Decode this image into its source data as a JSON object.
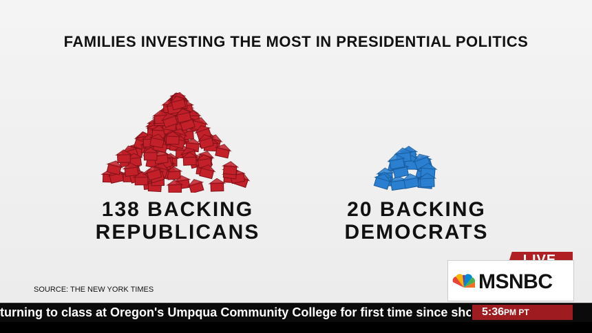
{
  "graphic": {
    "title": "FAMILIES INVESTING THE MOST IN PRESIDENTIAL POLITICS",
    "republican": {
      "line1": "138 BACKING",
      "line2": "REPUBLICANS",
      "count": 138,
      "color": "#c3202a"
    },
    "democrat": {
      "line1": "20 BACKING",
      "line2": "DEMOCRATS",
      "count": 20,
      "color": "#2a7fd0"
    },
    "source": "SOURCE: THE NEW YORK TIMES"
  },
  "broadcast": {
    "live_label": "LIVE",
    "network": "MSNBC",
    "logo_icon": "peacock-icon",
    "ticker": "turning to class at Oregon's Umpqua Community College for first time since shooti",
    "time": "5:36",
    "time_suffix": "PM PT"
  }
}
